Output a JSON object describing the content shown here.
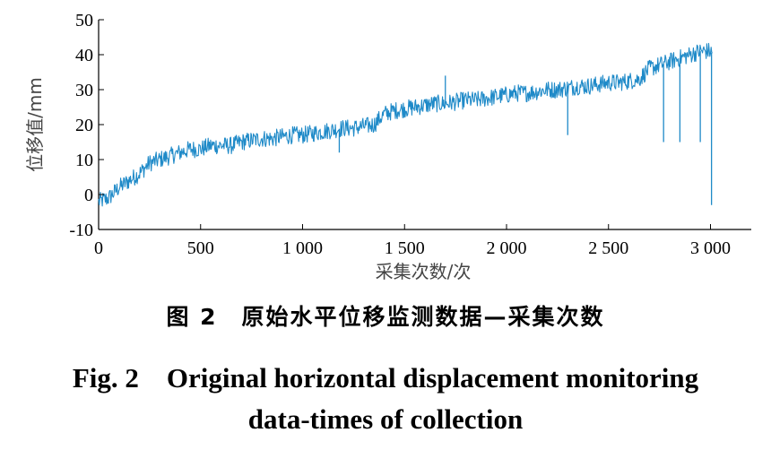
{
  "chart_data": {
    "type": "line",
    "xlabel": "采集次数/次",
    "ylabel": "位移值/mm",
    "xlim": [
      0,
      3200
    ],
    "ylim": [
      -10,
      50
    ],
    "x_ticks": [
      0,
      500,
      1000,
      1500,
      2000,
      2500,
      3000
    ],
    "x_tick_labels": [
      "0",
      "500",
      "1 000",
      "1 500",
      "2 000",
      "2 500",
      "3 000"
    ],
    "y_ticks": [
      -10,
      0,
      10,
      20,
      30,
      40,
      50
    ],
    "y_tick_labels": [
      "-10",
      "0",
      "10",
      "20",
      "30",
      "40",
      "50"
    ],
    "grid": false,
    "series": [
      {
        "color": "#1f8ac8",
        "x": [
          0,
          50,
          100,
          150,
          200,
          250,
          300,
          350,
          400,
          450,
          500,
          550,
          600,
          650,
          700,
          750,
          800,
          850,
          900,
          950,
          1000,
          1050,
          1100,
          1150,
          1200,
          1250,
          1300,
          1350,
          1400,
          1450,
          1500,
          1550,
          1600,
          1650,
          1700,
          1750,
          1800,
          1850,
          1900,
          1950,
          2000,
          2050,
          2100,
          2150,
          2200,
          2250,
          2300,
          2350,
          2400,
          2450,
          2500,
          2550,
          2600,
          2650,
          2700,
          2750,
          2800,
          2850,
          2900,
          2950,
          3000,
          3010
        ],
        "y": [
          -2,
          -1,
          2,
          4,
          6,
          9,
          10,
          11,
          12,
          13,
          13,
          14,
          14,
          14,
          15,
          15.5,
          16,
          16,
          16.5,
          17,
          17,
          17.5,
          18,
          18.5,
          19,
          19,
          19.5,
          20,
          23,
          24,
          24.5,
          25,
          25.5,
          26,
          26,
          26.5,
          27,
          27,
          27.5,
          28,
          28.5,
          29,
          29,
          29.5,
          30,
          30,
          30.5,
          31,
          31,
          31.5,
          32,
          32,
          32.5,
          33,
          36,
          37,
          38,
          39,
          40,
          41,
          41,
          40
        ],
        "noise_amplitude": 2.5,
        "spikes": [
          {
            "x": 1700,
            "y": 34
          },
          {
            "x": 1180,
            "y": 12
          },
          {
            "x": 2300,
            "y": 17
          },
          {
            "x": 2770,
            "y": 15
          },
          {
            "x": 2850,
            "y": 15
          },
          {
            "x": 2950,
            "y": 15
          },
          {
            "x": 3005,
            "y": -3
          }
        ]
      }
    ]
  },
  "caption": {
    "cn": "图 2　原始水平位移监测数据—采集次数",
    "en_line1": "Fig. 2　Original horizontal displacement monitoring",
    "en_line2": "data-times of collection"
  }
}
